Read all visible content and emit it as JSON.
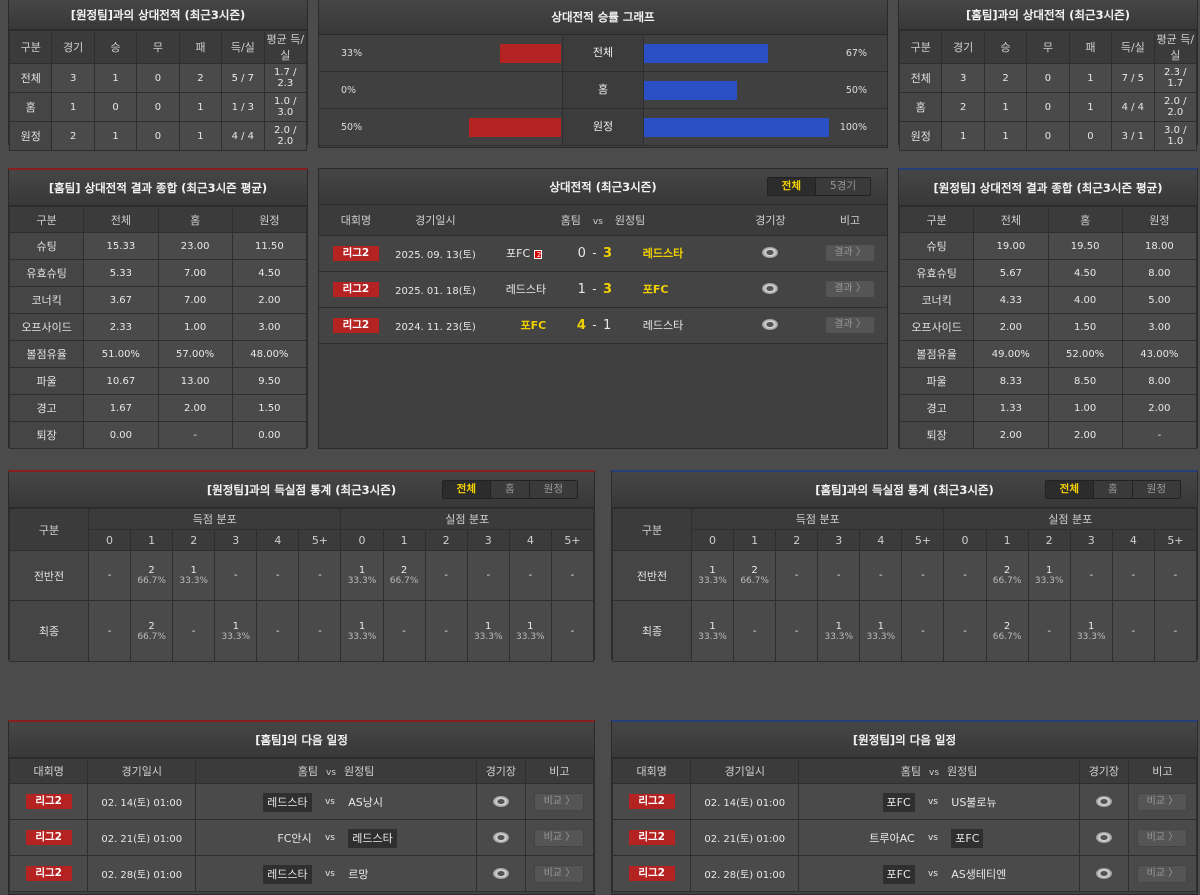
{
  "h2h_away": {
    "title": "[원정팀]과의 상대전적 (최근3시즌)",
    "headers": [
      "구분",
      "경기",
      "승",
      "무",
      "패",
      "득/실",
      "평균 득/실"
    ],
    "rows": [
      [
        "전체",
        "3",
        "1",
        "0",
        "2",
        "5 / 7",
        "1.7 / 2.3"
      ],
      [
        "홈",
        "1",
        "0",
        "0",
        "1",
        "1 / 3",
        "1.0 / 3.0"
      ],
      [
        "원정",
        "2",
        "1",
        "0",
        "1",
        "4 / 4",
        "2.0 / 2.0"
      ]
    ]
  },
  "h2h_home": {
    "title": "[홈팀]과의 상대전적 (최근3시즌)",
    "headers": [
      "구분",
      "경기",
      "승",
      "무",
      "패",
      "득/실",
      "평균 득/실"
    ],
    "rows": [
      [
        "전체",
        "3",
        "2",
        "0",
        "1",
        "7 / 5",
        "2.3 / 1.7"
      ],
      [
        "홈",
        "2",
        "1",
        "0",
        "1",
        "4 / 4",
        "2.0 / 2.0"
      ],
      [
        "원정",
        "1",
        "1",
        "0",
        "0",
        "3 / 1",
        "3.0 / 1.0"
      ]
    ]
  },
  "win_graph": {
    "title": "상대전적 승률 그래프",
    "colors": {
      "left": "#b42222",
      "right": "#2b4fc4"
    },
    "rows": [
      {
        "label": "전체",
        "left": "33%",
        "left_value": 33,
        "right": "67%",
        "right_value": 67
      },
      {
        "label": "홈",
        "left": "0%",
        "left_value": 0,
        "right": "50%",
        "right_value": 50
      },
      {
        "label": "원정",
        "left": "50%",
        "left_value": 50,
        "right": "100%",
        "right_value": 100
      }
    ]
  },
  "home_summary": {
    "title": "[홈팀] 상대전적 결과 종합 (최근3시즌 평균)",
    "headers": [
      "구분",
      "전체",
      "홈",
      "원정"
    ],
    "rows": [
      [
        "슈팅",
        "15.33",
        "23.00",
        "11.50"
      ],
      [
        "유효슈팅",
        "5.33",
        "7.00",
        "4.50"
      ],
      [
        "코너킥",
        "3.67",
        "7.00",
        "2.00"
      ],
      [
        "오프사이드",
        "2.33",
        "1.00",
        "3.00"
      ],
      [
        "볼점유율",
        "51.00%",
        "57.00%",
        "48.00%"
      ],
      [
        "파울",
        "10.67",
        "13.00",
        "9.50"
      ],
      [
        "경고",
        "1.67",
        "2.00",
        "1.50"
      ],
      [
        "퇴장",
        "0.00",
        "-",
        "0.00"
      ]
    ]
  },
  "away_summary": {
    "title": "[원정팀] 상대전적 결과 종합 (최근3시즌 평균)",
    "headers": [
      "구분",
      "전체",
      "홈",
      "원정"
    ],
    "rows": [
      [
        "슈팅",
        "19.00",
        "19.50",
        "18.00"
      ],
      [
        "유효슈팅",
        "5.67",
        "4.50",
        "8.00"
      ],
      [
        "코너킥",
        "4.33",
        "4.00",
        "5.00"
      ],
      [
        "오프사이드",
        "2.00",
        "1.50",
        "3.00"
      ],
      [
        "볼점유율",
        "49.00%",
        "52.00%",
        "43.00%"
      ],
      [
        "파울",
        "8.33",
        "8.50",
        "8.00"
      ],
      [
        "경고",
        "1.33",
        "1.00",
        "2.00"
      ],
      [
        "퇴장",
        "2.00",
        "2.00",
        "-"
      ]
    ]
  },
  "h2h_matches": {
    "title": "상대전적 (최근3시즌)",
    "toggle": [
      "전체",
      "5경기"
    ],
    "headers": {
      "league": "대회명",
      "date": "경기일시",
      "home": "홈팀",
      "vs": "vs",
      "away": "원정팀",
      "stadium": "경기장",
      "note": "비고"
    },
    "rows": [
      {
        "league": "리그2",
        "date": "2025. 09. 13(토)",
        "home": "포FC",
        "red_card": "2",
        "home_score": "0",
        "sep": "-",
        "away_score": "3",
        "away": "레드스타",
        "winner": "away",
        "button": "결과 〉"
      },
      {
        "league": "리그2",
        "date": "2025. 01. 18(토)",
        "home": "레드스타",
        "red_card": "",
        "home_score": "1",
        "sep": "-",
        "away_score": "3",
        "away": "포FC",
        "winner": "away",
        "button": "결과 〉"
      },
      {
        "league": "리그2",
        "date": "2024. 11. 23(토)",
        "home": "포FC",
        "red_card": "",
        "home_score": "4",
        "sep": "-",
        "away_score": "1",
        "away": "레드스타",
        "winner": "home",
        "button": "결과 〉"
      }
    ]
  },
  "goals_away": {
    "title": "[원정팀]과의 득실점 통계 (최근3시즌)",
    "toggle": [
      "전체",
      "홈",
      "원정"
    ],
    "col_label": "구분",
    "scored": "득점 분포",
    "conceded": "실점 분포",
    "buckets": [
      "0",
      "1",
      "2",
      "3",
      "4",
      "5+",
      "0",
      "1",
      "2",
      "3",
      "4",
      "5+"
    ],
    "rows": [
      {
        "label": "전반전",
        "cells": [
          "-",
          [
            "2",
            "66.7%"
          ],
          [
            "1",
            "33.3%"
          ],
          "-",
          "-",
          "-",
          [
            "1",
            "33.3%"
          ],
          [
            "2",
            "66.7%"
          ],
          "-",
          "-",
          "-",
          "-"
        ]
      },
      {
        "label": "최종",
        "cells": [
          "-",
          [
            "2",
            "66.7%"
          ],
          "-",
          [
            "1",
            "33.3%"
          ],
          "-",
          "-",
          [
            "1",
            "33.3%"
          ],
          "-",
          "-",
          [
            "1",
            "33.3%"
          ],
          [
            "1",
            "33.3%"
          ],
          "-"
        ]
      }
    ]
  },
  "goals_home": {
    "title": "[홈팀]과의 득실점 통계 (최근3시즌)",
    "toggle": [
      "전체",
      "홈",
      "원정"
    ],
    "col_label": "구분",
    "scored": "득점 분포",
    "conceded": "실점 분포",
    "buckets": [
      "0",
      "1",
      "2",
      "3",
      "4",
      "5+",
      "0",
      "1",
      "2",
      "3",
      "4",
      "5+"
    ],
    "rows": [
      {
        "label": "전반전",
        "cells": [
          [
            "1",
            "33.3%"
          ],
          [
            "2",
            "66.7%"
          ],
          "-",
          "-",
          "-",
          "-",
          "-",
          [
            "2",
            "66.7%"
          ],
          [
            "1",
            "33.3%"
          ],
          "-",
          "-",
          "-"
        ]
      },
      {
        "label": "최종",
        "cells": [
          [
            "1",
            "33.3%"
          ],
          "-",
          "-",
          [
            "1",
            "33.3%"
          ],
          [
            "1",
            "33.3%"
          ],
          "-",
          "-",
          [
            "2",
            "66.7%"
          ],
          "-",
          [
            "1",
            "33.3%"
          ],
          "-",
          "-"
        ]
      }
    ]
  },
  "home_next": {
    "title": "[홈팀]의 다음 일정",
    "headers": {
      "league": "대회명",
      "date": "경기일시",
      "home": "홈팀",
      "vs": "vs",
      "away": "원정팀",
      "stadium": "경기장",
      "note": "비고"
    },
    "rows": [
      {
        "league": "리그2",
        "date": "02. 14(토) 01:00",
        "home": "레드스타",
        "vs": "vs",
        "away": "AS낭시",
        "team_side": "home",
        "button": "비교 〉"
      },
      {
        "league": "리그2",
        "date": "02. 21(토) 01:00",
        "home": "FC안시",
        "vs": "vs",
        "away": "레드스타",
        "team_side": "away",
        "button": "비교 〉"
      },
      {
        "league": "리그2",
        "date": "02. 28(토) 01:00",
        "home": "레드스타",
        "vs": "vs",
        "away": "르망",
        "team_side": "home",
        "button": "비교 〉"
      }
    ]
  },
  "away_next": {
    "title": "[원정팀]의 다음 일정",
    "headers": {
      "league": "대회명",
      "date": "경기일시",
      "home": "홈팀",
      "vs": "vs",
      "away": "원정팀",
      "stadium": "경기장",
      "note": "비고"
    },
    "rows": [
      {
        "league": "리그2",
        "date": "02. 14(토) 01:00",
        "home": "포FC",
        "vs": "vs",
        "away": "US불로뉴",
        "team_side": "home",
        "button": "비교 〉"
      },
      {
        "league": "리그2",
        "date": "02. 21(토) 01:00",
        "home": "트루아AC",
        "vs": "vs",
        "away": "포FC",
        "team_side": "away",
        "button": "비교 〉"
      },
      {
        "league": "리그2",
        "date": "02. 28(토) 01:00",
        "home": "포FC",
        "vs": "vs",
        "away": "AS생테티엔",
        "team_side": "home",
        "button": "비교 〉"
      }
    ]
  }
}
